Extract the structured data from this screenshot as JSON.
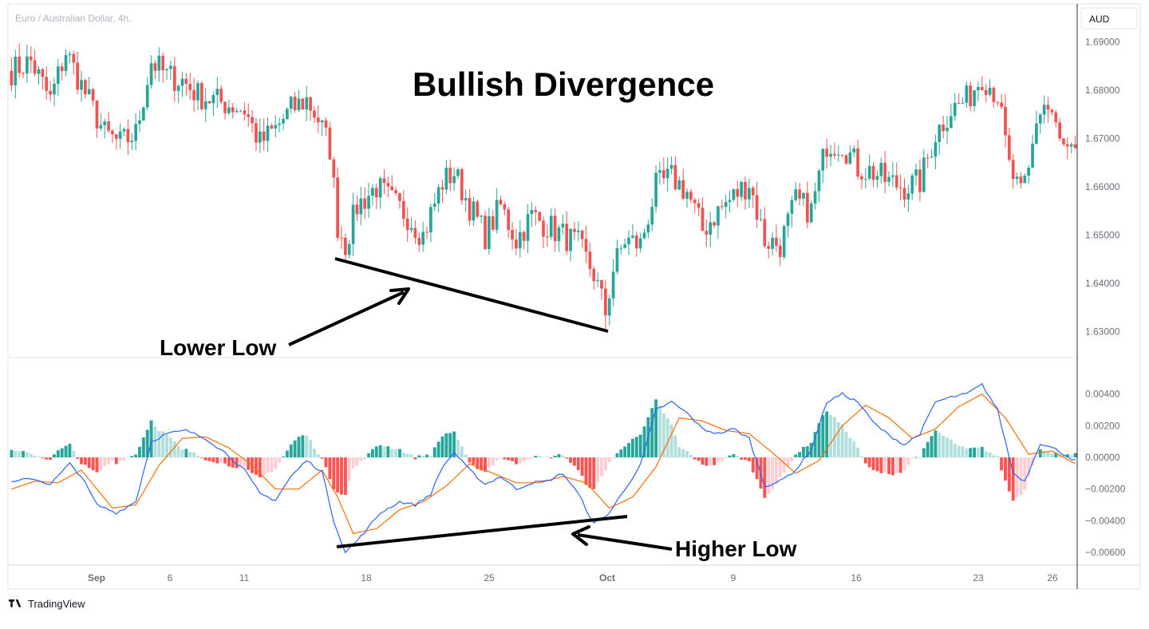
{
  "header": {
    "symbol": "Euro / Australian Dollar, 4h,",
    "currency_badge": "AUD"
  },
  "branding": {
    "name": "TradingView",
    "logo_icon": "tradingview-logo-icon"
  },
  "colors": {
    "up": "#26a69a",
    "down": "#ef5350",
    "hist_up_strong": "#26a69a",
    "hist_up_weak": "#b2dfdb",
    "hist_down_strong": "#ff5252",
    "hist_down_weak": "#ffcdd2",
    "macd_line": "#2962ff",
    "signal_line": "#ff6d00",
    "annotation": "#000000"
  },
  "annotations": {
    "title": "Bullish Divergence",
    "price_label": "Lower Low",
    "indicator_label": "Higher Low"
  },
  "chart_data": [
    {
      "type": "candlestick",
      "name": "price",
      "title": "Bullish Divergence",
      "ylim": [
        1.625,
        1.697
      ],
      "y_ticks": [
        "1.69000",
        "1.68000",
        "1.67000",
        "1.66000",
        "1.65000",
        "1.64000",
        "1.63000"
      ],
      "x_ticks": [
        "Sep",
        "6",
        "11",
        "18",
        "25",
        "Oct",
        "9",
        "16",
        "23",
        "26"
      ],
      "x_ticks_bold": [
        "Sep",
        "Oct"
      ],
      "anchors": [
        [
          0,
          1.684
        ],
        [
          5,
          1.686
        ],
        [
          10,
          1.678
        ],
        [
          14,
          1.688
        ],
        [
          18,
          1.681
        ],
        [
          24,
          1.671
        ],
        [
          28,
          1.669
        ],
        [
          32,
          1.671
        ],
        [
          36,
          1.686
        ],
        [
          40,
          1.683
        ],
        [
          44,
          1.682
        ],
        [
          48,
          1.679
        ],
        [
          52,
          1.678
        ],
        [
          56,
          1.677
        ],
        [
          60,
          1.676
        ],
        [
          64,
          1.669
        ],
        [
          68,
          1.672
        ],
        [
          72,
          1.676
        ],
        [
          76,
          1.678
        ],
        [
          79,
          1.674
        ],
        [
          82,
          1.668
        ],
        [
          84,
          1.652
        ],
        [
          86,
          1.648
        ],
        [
          89,
          1.656
        ],
        [
          94,
          1.66
        ],
        [
          98,
          1.657
        ],
        [
          102,
          1.654
        ],
        [
          106,
          1.65
        ],
        [
          111,
          1.661
        ],
        [
          114,
          1.663
        ],
        [
          118,
          1.656
        ],
        [
          122,
          1.65
        ],
        [
          126,
          1.656
        ],
        [
          130,
          1.649
        ],
        [
          134,
          1.654
        ],
        [
          138,
          1.652
        ],
        [
          142,
          1.65
        ],
        [
          146,
          1.648
        ],
        [
          150,
          1.642
        ],
        [
          153,
          1.634
        ],
        [
          155,
          1.643
        ],
        [
          158,
          1.649
        ],
        [
          162,
          1.648
        ],
        [
          166,
          1.66
        ],
        [
          170,
          1.662
        ],
        [
          174,
          1.659
        ],
        [
          178,
          1.651
        ],
        [
          182,
          1.655
        ],
        [
          186,
          1.658
        ],
        [
          190,
          1.661
        ],
        [
          194,
          1.649
        ],
        [
          198,
          1.648
        ],
        [
          202,
          1.657
        ],
        [
          206,
          1.655
        ],
        [
          210,
          1.669
        ],
        [
          214,
          1.669
        ],
        [
          218,
          1.664
        ],
        [
          222,
          1.663
        ],
        [
          226,
          1.661
        ],
        [
          230,
          1.66
        ],
        [
          234,
          1.661
        ],
        [
          238,
          1.671
        ],
        [
          242,
          1.676
        ],
        [
          246,
          1.678
        ],
        [
          250,
          1.683
        ],
        [
          254,
          1.679
        ],
        [
          257,
          1.664
        ],
        [
          260,
          1.658
        ],
        [
          262,
          1.663
        ],
        [
          264,
          1.674
        ],
        [
          266,
          1.677
        ],
        [
          268,
          1.675
        ],
        [
          270,
          1.669
        ],
        [
          272,
          1.667
        ],
        [
          274,
          1.666
        ]
      ]
    },
    {
      "type": "macd",
      "name": "macd",
      "ylim": [
        -0.0067,
        0.0061
      ],
      "y_ticks": [
        "0.00400",
        "0.00200",
        "0.00000",
        "−0.00200",
        "−0.00400",
        "−0.00600"
      ],
      "macd_anchors": [
        [
          0,
          -0.0016
        ],
        [
          5,
          -0.0013
        ],
        [
          10,
          -0.0017
        ],
        [
          15,
          -0.0004
        ],
        [
          18,
          -0.0012
        ],
        [
          22,
          -0.003
        ],
        [
          27,
          -0.0035
        ],
        [
          32,
          -0.0028
        ],
        [
          36,
          0.001
        ],
        [
          40,
          0.0015
        ],
        [
          45,
          0.0017
        ],
        [
          50,
          0.0012
        ],
        [
          55,
          0.0003
        ],
        [
          60,
          -0.0008
        ],
        [
          64,
          -0.0023
        ],
        [
          68,
          -0.0027
        ],
        [
          72,
          -0.0012
        ],
        [
          76,
          -0.0002
        ],
        [
          80,
          -0.0009
        ],
        [
          83,
          -0.004
        ],
        [
          86,
          -0.006
        ],
        [
          90,
          -0.005
        ],
        [
          95,
          -0.0035
        ],
        [
          100,
          -0.0028
        ],
        [
          104,
          -0.003
        ],
        [
          108,
          -0.0023
        ],
        [
          111,
          -0.0006
        ],
        [
          114,
          0.0003
        ],
        [
          118,
          -0.0008
        ],
        [
          122,
          -0.0017
        ],
        [
          126,
          -0.0012
        ],
        [
          130,
          -0.002
        ],
        [
          134,
          -0.0016
        ],
        [
          138,
          -0.0015
        ],
        [
          142,
          -0.001
        ],
        [
          146,
          -0.0023
        ],
        [
          150,
          -0.0042
        ],
        [
          154,
          -0.0035
        ],
        [
          158,
          -0.002
        ],
        [
          162,
          -0.0005
        ],
        [
          166,
          0.003
        ],
        [
          170,
          0.0035
        ],
        [
          174,
          0.0028
        ],
        [
          178,
          0.0018
        ],
        [
          182,
          0.0015
        ],
        [
          186,
          0.0018
        ],
        [
          190,
          0.0012
        ],
        [
          194,
          -0.0018
        ],
        [
          198,
          -0.0015
        ],
        [
          202,
          -0.0008
        ],
        [
          206,
          0.0005
        ],
        [
          210,
          0.0035
        ],
        [
          214,
          0.004
        ],
        [
          218,
          0.0035
        ],
        [
          222,
          0.0022
        ],
        [
          226,
          0.0014
        ],
        [
          230,
          0.0008
        ],
        [
          234,
          0.0015
        ],
        [
          238,
          0.0035
        ],
        [
          242,
          0.0038
        ],
        [
          246,
          0.004
        ],
        [
          250,
          0.0046
        ],
        [
          254,
          0.003
        ],
        [
          258,
          -0.001
        ],
        [
          261,
          -0.0015
        ],
        [
          265,
          0.0009
        ],
        [
          269,
          0.0005
        ],
        [
          274,
          -0.0002
        ]
      ],
      "signal_anchors": [
        [
          0,
          -0.002
        ],
        [
          6,
          -0.0015
        ],
        [
          12,
          -0.0016
        ],
        [
          18,
          -0.0008
        ],
        [
          26,
          -0.0032
        ],
        [
          32,
          -0.003
        ],
        [
          38,
          -0.0005
        ],
        [
          44,
          0.0012
        ],
        [
          50,
          0.0013
        ],
        [
          56,
          0.0006
        ],
        [
          62,
          -0.0005
        ],
        [
          68,
          -0.002
        ],
        [
          74,
          -0.002
        ],
        [
          80,
          -0.0008
        ],
        [
          84,
          -0.0025
        ],
        [
          88,
          -0.0048
        ],
        [
          94,
          -0.0045
        ],
        [
          100,
          -0.0033
        ],
        [
          106,
          -0.0028
        ],
        [
          112,
          -0.0018
        ],
        [
          118,
          -0.0004
        ],
        [
          124,
          -0.001
        ],
        [
          130,
          -0.0016
        ],
        [
          136,
          -0.0016
        ],
        [
          142,
          -0.0012
        ],
        [
          148,
          -0.0016
        ],
        [
          154,
          -0.0032
        ],
        [
          160,
          -0.0025
        ],
        [
          166,
          -0.0006
        ],
        [
          172,
          0.0025
        ],
        [
          178,
          0.0023
        ],
        [
          184,
          0.0017
        ],
        [
          190,
          0.0015
        ],
        [
          196,
          0.0003
        ],
        [
          202,
          -0.001
        ],
        [
          208,
          -0.0002
        ],
        [
          214,
          0.002
        ],
        [
          220,
          0.0033
        ],
        [
          226,
          0.0025
        ],
        [
          232,
          0.0012
        ],
        [
          238,
          0.0018
        ],
        [
          244,
          0.0032
        ],
        [
          250,
          0.004
        ],
        [
          256,
          0.0025
        ],
        [
          262,
          0.0002
        ],
        [
          268,
          0.0004
        ],
        [
          274,
          -0.0004
        ]
      ]
    }
  ]
}
